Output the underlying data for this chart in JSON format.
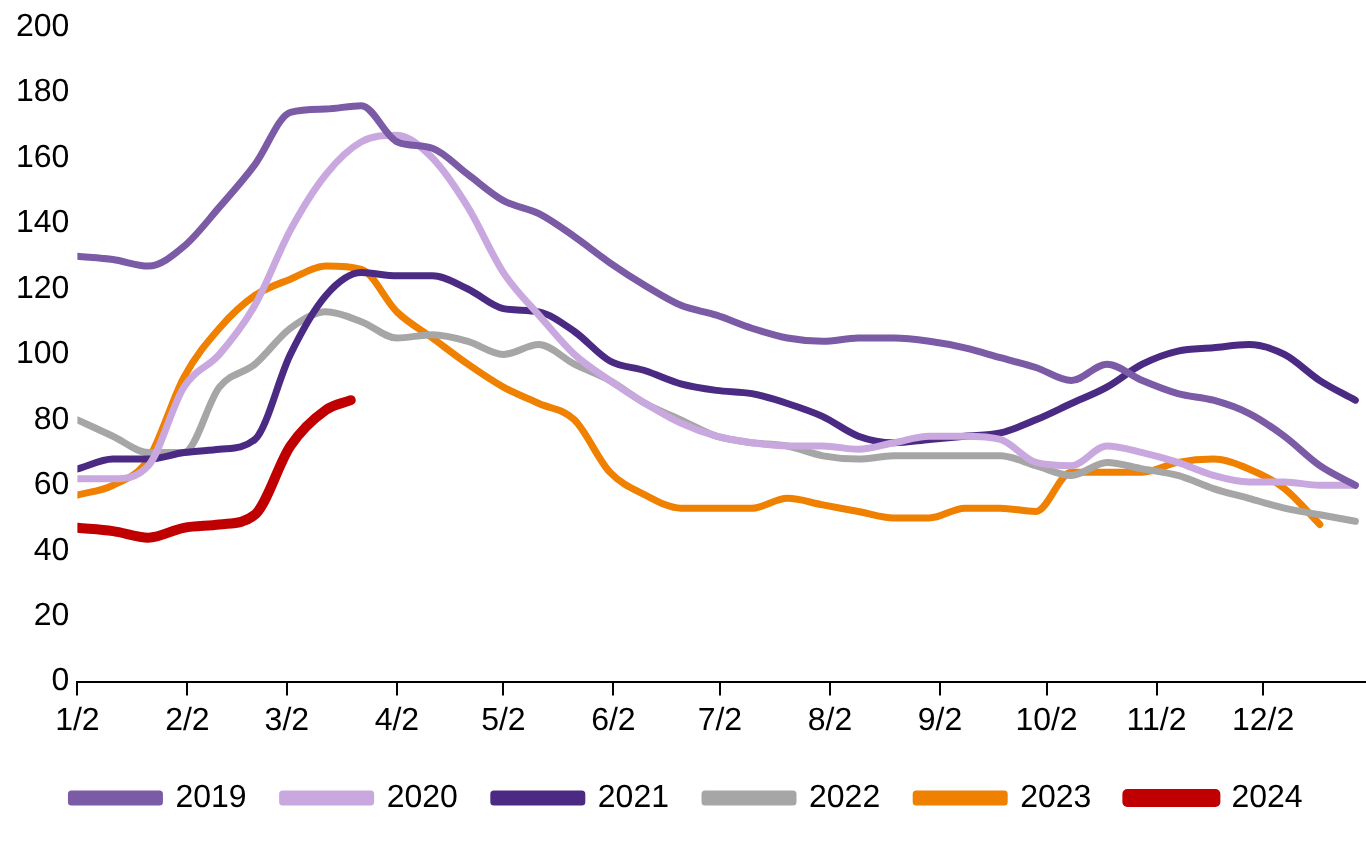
{
  "chart_data": {
    "type": "line",
    "x": [
      "--01-02",
      "--01-12",
      "--01-22",
      "--02-01",
      "--02-11",
      "--02-21",
      "--03-03",
      "--03-13",
      "--03-23",
      "--04-02",
      "--04-12",
      "--04-22",
      "--05-02",
      "--05-12",
      "--05-22",
      "--06-01",
      "--06-11",
      "--06-21",
      "--07-01",
      "--07-11",
      "--07-21",
      "--07-31",
      "--08-10",
      "--08-20",
      "--08-30",
      "--09-09",
      "--09-19",
      "--09-29",
      "--10-09",
      "--10-19",
      "--10-29",
      "--11-08",
      "--11-18",
      "--11-28",
      "--12-08",
      "--12-18",
      "--12-28"
    ],
    "series": [
      {
        "name": "2019",
        "color": "#7b5aa6",
        "values": [
          130,
          129,
          127,
          133,
          145,
          158,
          174,
          175,
          176,
          165,
          163,
          155,
          147,
          143,
          136,
          128,
          121,
          115,
          112,
          108,
          105,
          104,
          105,
          105,
          104,
          102,
          99,
          96,
          92,
          97,
          92,
          88,
          86,
          82,
          75,
          66,
          60
        ]
      },
      {
        "name": "2020",
        "color": "#c9a8e0",
        "values": [
          62,
          62,
          66,
          90,
          100,
          115,
          138,
          155,
          165,
          167,
          160,
          145,
          125,
          112,
          100,
          92,
          85,
          79,
          75,
          73,
          72,
          72,
          71,
          73,
          75,
          75,
          74,
          67,
          66,
          72,
          70,
          67,
          63,
          61,
          61,
          60,
          60
        ]
      },
      {
        "name": "2021",
        "color": "#4b2a84",
        "values": [
          65,
          68,
          68,
          70,
          71,
          74,
          100,
          118,
          125,
          124,
          124,
          120,
          114,
          113,
          107,
          98,
          95,
          91,
          89,
          88,
          85,
          81,
          75,
          73,
          74,
          75,
          76,
          80,
          85,
          90,
          97,
          101,
          102,
          103,
          100,
          92,
          86
        ]
      },
      {
        "name": "2022",
        "color": "#a6a6a6",
        "values": [
          80,
          75,
          70,
          70,
          90,
          97,
          108,
          113,
          110,
          105,
          106,
          104,
          100,
          103,
          97,
          92,
          85,
          80,
          75,
          73,
          72,
          69,
          68,
          69,
          69,
          69,
          69,
          66,
          63,
          67,
          65,
          63,
          59,
          56,
          53,
          51,
          49
        ]
      },
      {
        "name": "2023",
        "color": "#f08000",
        "values": [
          57,
          60,
          68,
          93,
          108,
          118,
          123,
          127,
          126,
          113,
          105,
          97,
          90,
          85,
          80,
          64,
          57,
          53,
          53,
          53,
          56,
          54,
          52,
          50,
          50,
          53,
          53,
          52,
          64,
          64,
          64,
          67,
          68,
          65,
          59,
          48,
          null
        ]
      },
      {
        "name": "2024",
        "color": "#c00000",
        "x": [
          "--01-02",
          "--01-12",
          "--01-22",
          "--02-01",
          "--02-11",
          "--02-21",
          "--03-03",
          "--03-13",
          "--03-20"
        ],
        "values": [
          47,
          46,
          44,
          47,
          48,
          51,
          72,
          83,
          86
        ]
      }
    ],
    "xlim": [
      "--01-02",
      "--12-31"
    ],
    "xticks": [
      {
        "value": "--01-02",
        "label": "1/2"
      },
      {
        "value": "--02-02",
        "label": "2/2"
      },
      {
        "value": "--03-02",
        "label": "3/2"
      },
      {
        "value": "--04-02",
        "label": "4/2"
      },
      {
        "value": "--05-02",
        "label": "5/2"
      },
      {
        "value": "--06-02",
        "label": "6/2"
      },
      {
        "value": "--07-02",
        "label": "7/2"
      },
      {
        "value": "--08-02",
        "label": "8/2"
      },
      {
        "value": "--09-02",
        "label": "9/2"
      },
      {
        "value": "--10-02",
        "label": "10/2"
      },
      {
        "value": "--11-02",
        "label": "11/2"
      },
      {
        "value": "--12-02",
        "label": "12/2"
      }
    ],
    "ylim": [
      0,
      200
    ],
    "yticks": [
      0,
      20,
      40,
      60,
      80,
      100,
      120,
      140,
      160,
      180,
      200
    ],
    "legend": "bottom",
    "grid": false,
    "marker": "none",
    "line_style": "solid"
  }
}
